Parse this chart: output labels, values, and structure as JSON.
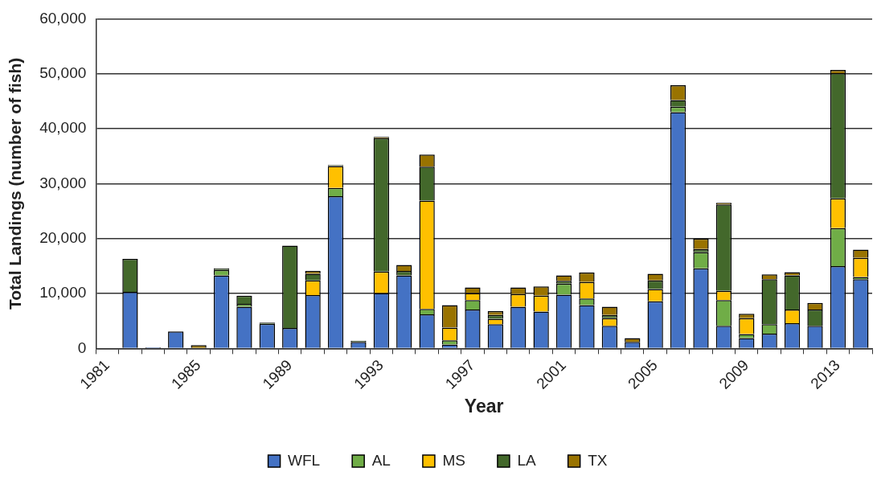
{
  "chart_data": {
    "type": "bar",
    "stacked": true,
    "xlabel": "Year",
    "ylabel": "Total Landings (number of fish)",
    "categories": [
      "1981",
      null,
      null,
      null,
      "1985",
      null,
      null,
      null,
      "1989",
      null,
      null,
      null,
      "1993",
      null,
      null,
      null,
      "1997",
      null,
      null,
      null,
      "2001",
      null,
      null,
      null,
      "2005",
      null,
      null,
      null,
      "2009",
      null,
      null,
      null,
      "2013",
      null
    ],
    "series": [
      {
        "name": "WFL",
        "color": "#4472c4",
        "values": [
          null,
          10300,
          200,
          3100,
          null,
          13300,
          7600,
          4500,
          3700,
          9700,
          27700,
          1200,
          10100,
          13300,
          6200,
          700,
          7100,
          4400,
          7600,
          6700,
          9800,
          7900,
          4100,
          1200,
          8600,
          43000,
          14600,
          4100,
          1900,
          2700,
          4600,
          4100,
          15000,
          12600
        ]
      },
      {
        "name": "AL",
        "color": "#70ad47",
        "values": [
          null,
          null,
          null,
          null,
          null,
          1000,
          500,
          null,
          null,
          null,
          1500,
          null,
          null,
          null,
          1000,
          800,
          1700,
          null,
          null,
          null,
          2000,
          1200,
          null,
          null,
          null,
          1000,
          2900,
          4700,
          700,
          1700,
          null,
          null,
          6900,
          400
        ]
      },
      {
        "name": "MS",
        "color": "#ffc000",
        "values": [
          null,
          null,
          null,
          null,
          null,
          null,
          null,
          null,
          null,
          2700,
          4000,
          null,
          3900,
          null,
          19700,
          2300,
          1300,
          1000,
          2300,
          2900,
          null,
          3000,
          1400,
          null,
          2200,
          null,
          null,
          1700,
          2900,
          null,
          2500,
          null,
          5400,
          3500
        ]
      },
      {
        "name": "LA",
        "color": "#43682b",
        "values": [
          null,
          6000,
          null,
          null,
          null,
          300,
          1500,
          200,
          15000,
          1200,
          200,
          200,
          24300,
          800,
          6200,
          null,
          null,
          700,
          null,
          null,
          500,
          null,
          600,
          null,
          1600,
          1200,
          600,
          15700,
          null,
          8200,
          6200,
          3000,
          22800,
          null
        ]
      },
      {
        "name": "TX",
        "color": "#997300",
        "values": [
          null,
          null,
          null,
          null,
          600,
          null,
          null,
          null,
          null,
          500,
          null,
          null,
          200,
          1100,
          2200,
          4100,
          1000,
          700,
          1200,
          1700,
          1000,
          1700,
          1500,
          700,
          1200,
          2700,
          1900,
          300,
          800,
          900,
          600,
          1200,
          600,
          1500
        ]
      }
    ],
    "ylim": [
      0,
      60000
    ],
    "yticks": [
      {
        "value": 0,
        "label": "0"
      },
      {
        "value": 10000,
        "label": "10,000"
      },
      {
        "value": 20000,
        "label": "20,000"
      },
      {
        "value": 30000,
        "label": "30,000"
      },
      {
        "value": 40000,
        "label": "40,000"
      },
      {
        "value": 50000,
        "label": "50,000"
      },
      {
        "value": 60000,
        "label": "60,000"
      }
    ],
    "grid": "y",
    "legend": "bottom"
  }
}
